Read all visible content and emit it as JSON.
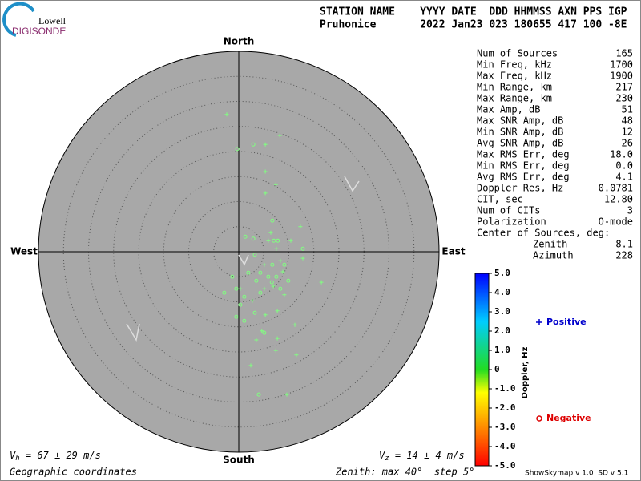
{
  "header": {
    "logo_top": "Lowell",
    "logo_bottom": "DIGISONDE",
    "line1": "STATION NAME    YYYY DATE  DDD HHMMSS AXN PPS IGP",
    "line2": "Pruhonice       2022 Jan23 023 180655 417 100 -8E"
  },
  "stats": {
    "rows": [
      [
        "Num of Sources",
        "165"
      ],
      [
        "Min Freq, kHz",
        "1700"
      ],
      [
        "Max Freq, kHz",
        "1900"
      ],
      [
        "Min Range, km",
        "217"
      ],
      [
        "Max Range, km",
        "230"
      ],
      [
        "Max Amp, dB",
        "51"
      ],
      [
        "Max SNR Amp, dB",
        "48"
      ],
      [
        "Min SNR Amp, dB",
        "12"
      ],
      [
        "Avg SNR Amp, dB",
        "26"
      ],
      [
        "Max RMS Err, deg",
        "18.0"
      ],
      [
        "Min RMS Err, deg",
        "0.0"
      ],
      [
        "Avg RMS Err, deg",
        "4.1"
      ],
      [
        "Doppler Res, Hz",
        "0.0781"
      ],
      [
        "CIT, sec",
        "12.80"
      ],
      [
        "Num of CITs",
        "3"
      ],
      [
        "Polarization",
        "O-mode"
      ]
    ],
    "center_title": "Center of Sources, deg:",
    "center_rows": [
      [
        "Zenith",
        "8.1"
      ],
      [
        "Azimuth",
        "228"
      ]
    ]
  },
  "chart_data": {
    "type": "skymap",
    "directions": {
      "north": "North",
      "south": "South",
      "east": "East",
      "west": "West"
    },
    "rlim": [
      0,
      40
    ],
    "rticks": [
      5,
      10,
      15,
      20,
      25,
      30,
      35,
      40
    ],
    "series": [
      {
        "name": "Positive",
        "symbol": "+",
        "color": "#80ff80",
        "legend_color": "#0000cc",
        "x": [
          -2.4,
          5.3,
          5.3,
          8.2,
          7.4,
          5.3,
          12.3,
          10.4,
          12.8,
          16.5,
          8.8,
          6.9,
          5.1,
          9.1,
          7.7,
          5.3,
          3.5,
          7.7,
          7.4,
          2.4,
          9.6,
          11.5,
          11.2,
          4.6,
          2.7,
          0.3,
          5.1,
          7.5,
          8.3,
          5.9,
          6.4
        ],
        "values": [
          27.4,
          21.4,
          16.0,
          23.2,
          13.4,
          11.7,
          5.0,
          2.2,
          -1.3,
          -6.1,
          -4.0,
          -6.9,
          -7.4,
          -8.6,
          -11.8,
          -12.6,
          -17.6,
          -17.3,
          -19.7,
          -22.7,
          -28.5,
          -20.6,
          -14.6,
          -15.8,
          -9.8,
          -7.4,
          -2.6,
          0.6,
          -1.8,
          2.2,
          3.8
        ]
      },
      {
        "name": "Negative",
        "symbol": "o",
        "color": "#80ff80",
        "legend_color": "#dd0000",
        "x": [
          -0.3,
          2.9,
          1.3,
          2.9,
          6.7,
          12.8,
          -0.5,
          -2.9,
          0.3,
          -0.5,
          1.1,
          3.2,
          4.0,
          5.1,
          6.7,
          5.9,
          7.5,
          3.5,
          1.9,
          4.3,
          9.1,
          9.9,
          7.0,
          -1.3,
          1.1,
          4.3,
          8.3,
          7.8,
          6.6,
          3.2
        ],
        "values": [
          20.5,
          21.4,
          3.0,
          2.6,
          6.2,
          0.6,
          -7.4,
          -8.2,
          -10.6,
          -13.0,
          -13.8,
          -12.2,
          -28.5,
          -16.2,
          -2.6,
          -5.0,
          -5.0,
          -5.8,
          -4.2,
          -8.2,
          -2.6,
          -5.8,
          2.2,
          -5.0,
          -9.0,
          -4.2,
          -7.4,
          2.2,
          -6.1,
          -0.6
        ]
      }
    ],
    "colorbar": {
      "label": "Doppler, Hz",
      "lim": [
        -5,
        5
      ],
      "ticks": [
        {
          "value": 5,
          "label": "5.0"
        },
        {
          "value": 4,
          "label": "4.0"
        },
        {
          "value": 3,
          "label": "3.0"
        },
        {
          "value": 2,
          "label": "2.0"
        },
        {
          "value": 1,
          "label": "1.0"
        },
        0,
        {
          "value": -1,
          "label": "-1.0"
        },
        {
          "value": -2,
          "label": "-2.0"
        },
        {
          "value": -3,
          "label": "-3.0"
        },
        {
          "value": -4,
          "label": "-4.0"
        },
        {
          "value": -5,
          "label": "-5.0"
        }
      ]
    },
    "vh": {
      "symbol": "V",
      "sub": "h",
      "text": " = 67 ± 29 m/s"
    },
    "vz": {
      "symbol": "V",
      "sub": "z",
      "text": " = 14 ± 4 m/s"
    },
    "coordinates": "Geographic coordinates",
    "zenith_note": "Zenith: max 40°  step 5°",
    "version": "ShowSkymap v 1.0  SD v 5.1"
  }
}
